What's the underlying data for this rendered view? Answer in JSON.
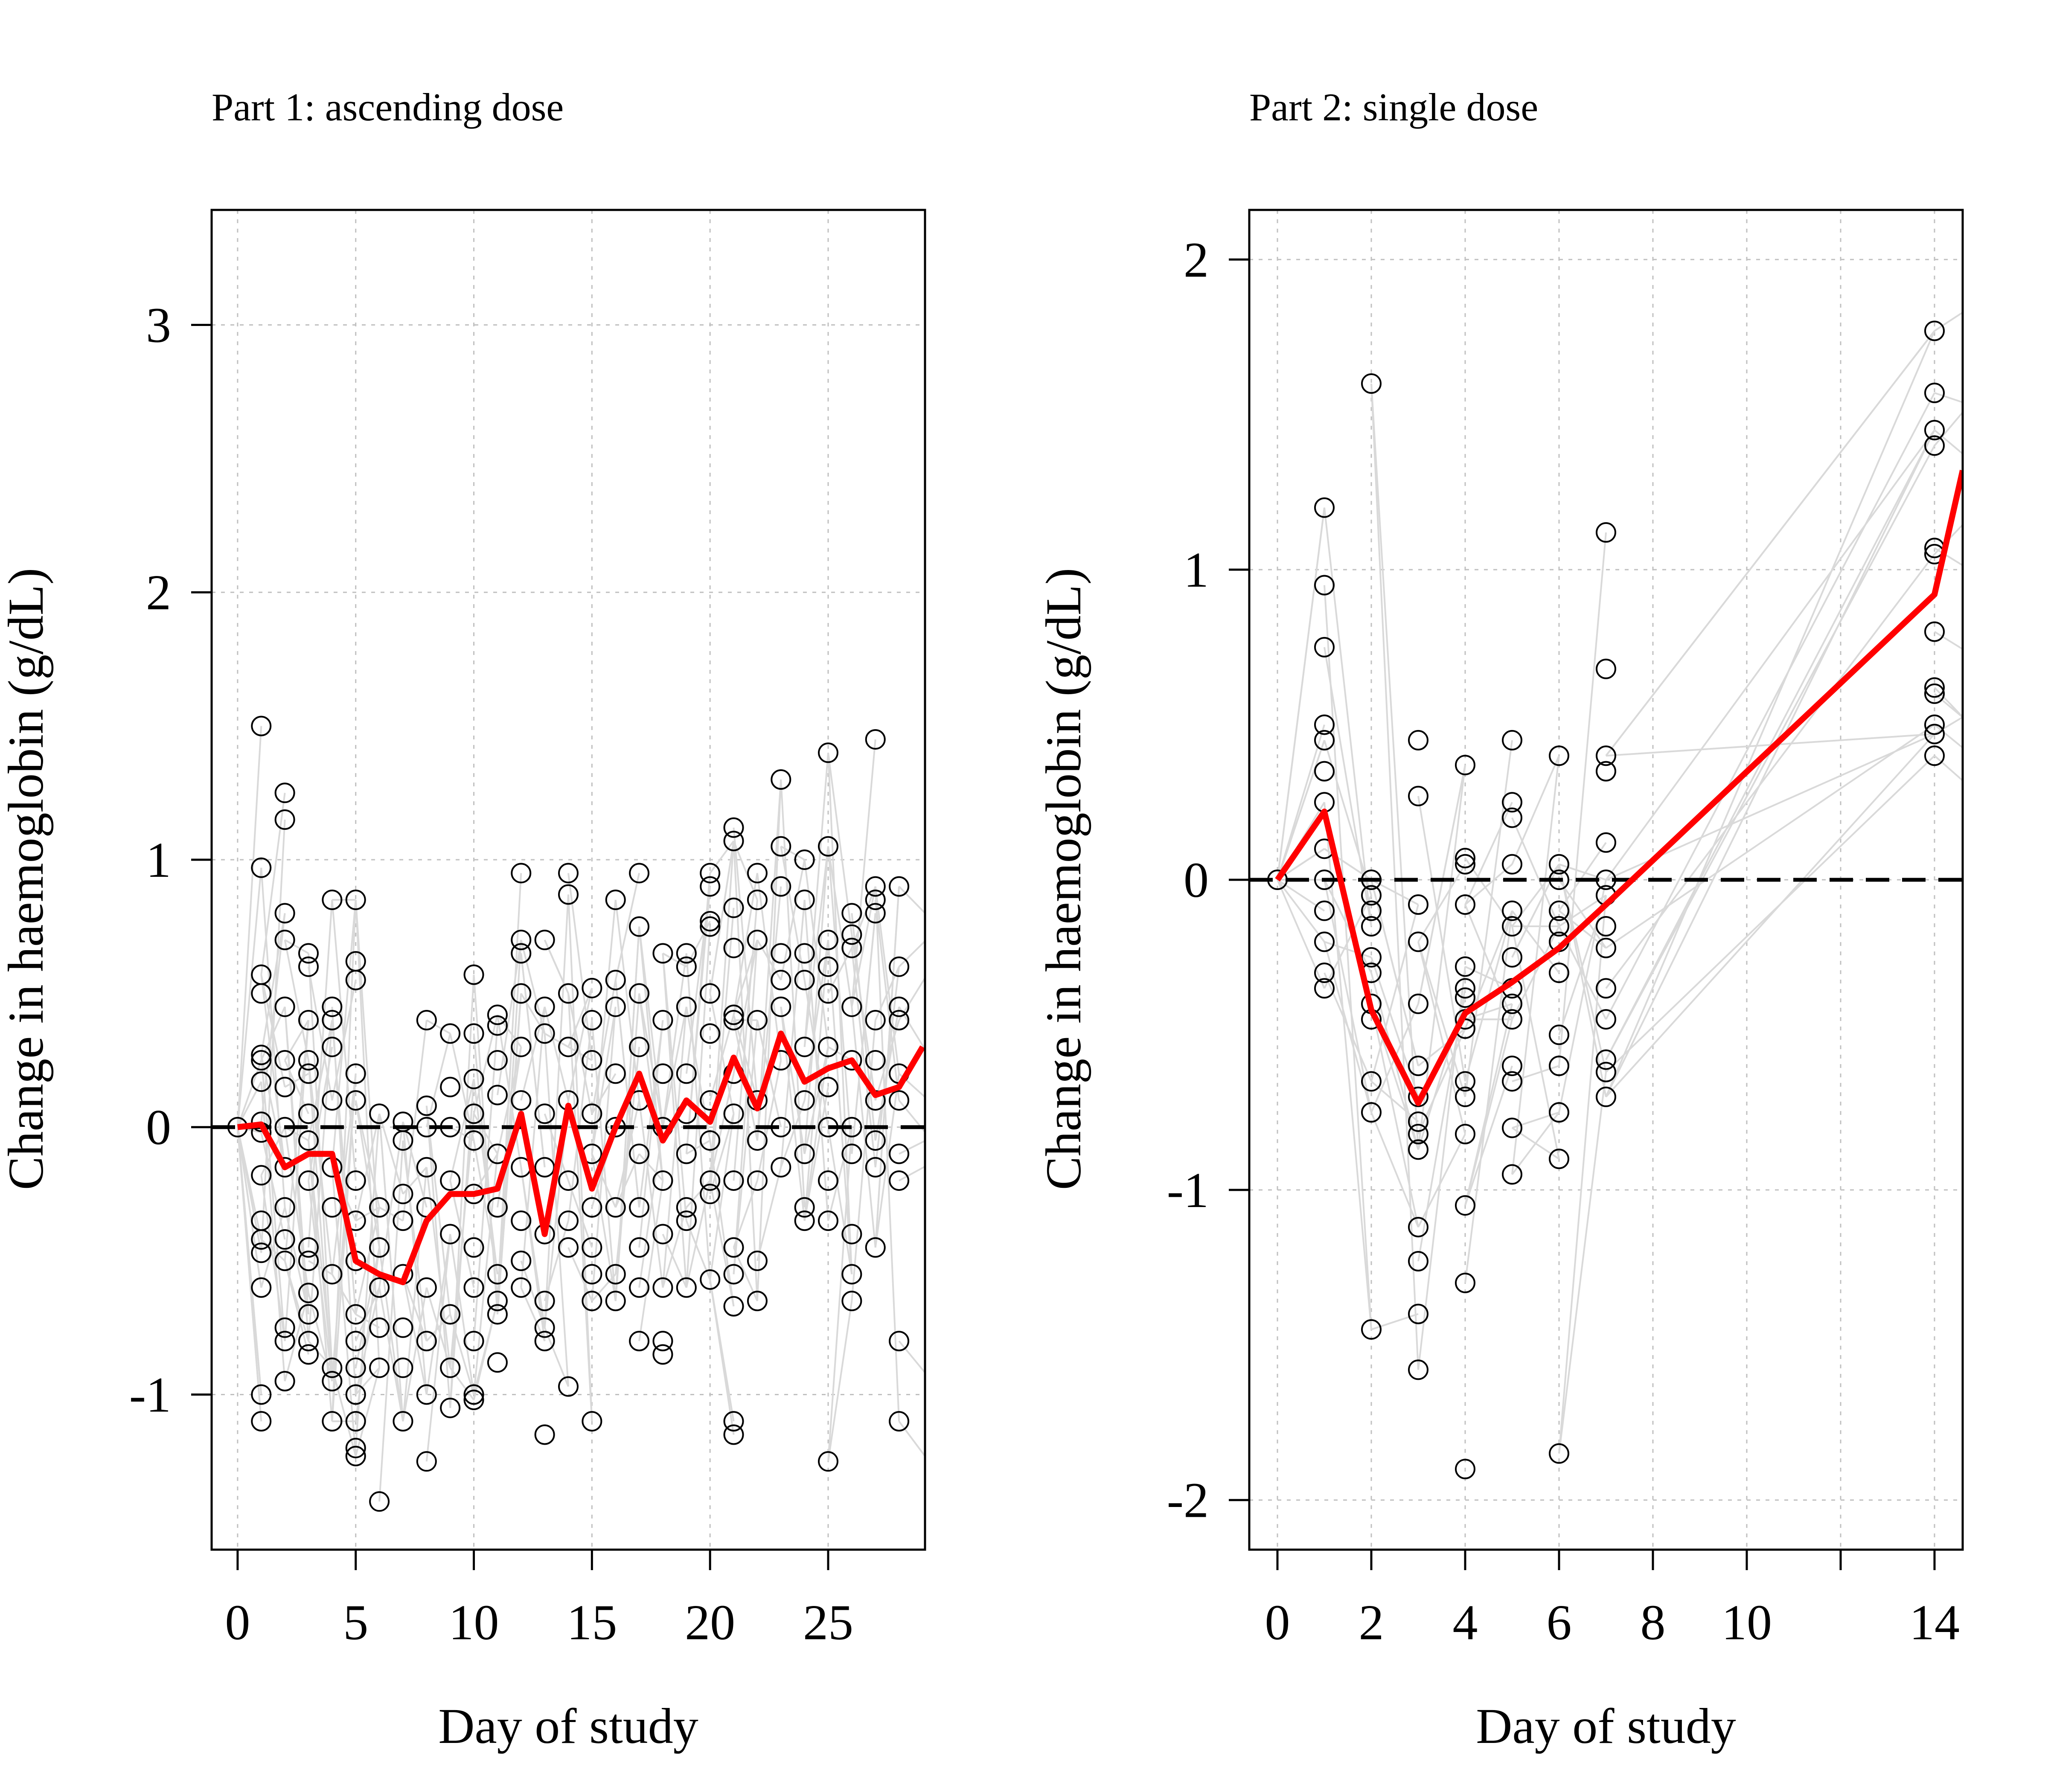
{
  "colors": {
    "mean_line": "#ff0000",
    "individual_lines": "#d9d9d9",
    "points": "#000000",
    "grid": "#c0c0c0",
    "reference_line": "#000000"
  },
  "chart_data": [
    {
      "type": "line",
      "title": "Part 1: ascending dose",
      "xlabel": "Day of study",
      "ylabel": "Change in haemoglobin (g/dL)",
      "xlim": [
        -1.1,
        29.1
      ],
      "ylim": [
        -1.58,
        3.43
      ],
      "xticks": [
        0,
        5,
        10,
        15,
        20,
        25
      ],
      "yticks": [
        -1,
        0,
        1,
        2,
        3
      ],
      "grid": true,
      "reference_line_y": 0,
      "mean_series": {
        "x": [
          0,
          1,
          2,
          3,
          4,
          5,
          6,
          7,
          8,
          9,
          10,
          11,
          12,
          13,
          14,
          15,
          16,
          17,
          18,
          19,
          20,
          21,
          22,
          23,
          24,
          25,
          26,
          27,
          28,
          29
        ],
        "y": [
          0,
          0.01,
          -0.15,
          -0.1,
          -0.1,
          -0.5,
          -0.55,
          -0.58,
          -0.35,
          -0.25,
          -0.25,
          -0.23,
          0.05,
          -0.4,
          0.08,
          -0.23,
          0.0,
          0.2,
          -0.05,
          0.1,
          0.02,
          0.26,
          0.07,
          0.35,
          0.17,
          0.22,
          0.25,
          0.12,
          0.15,
          0.3
        ]
      },
      "points_by_day": [
        {
          "day": 0,
          "y": [
            0
          ]
        },
        {
          "day": 1,
          "y": [
            1.5,
            0.97,
            0.57,
            0.5,
            0.27,
            0.25,
            0.17,
            0.02,
            -0.02,
            -0.18,
            -0.35,
            -0.42,
            -0.47,
            -0.6,
            -1.0,
            -1.1
          ]
        },
        {
          "day": 2,
          "y": [
            1.25,
            1.15,
            0.8,
            0.7,
            0.45,
            0.25,
            0.15,
            0.0,
            -0.15,
            -0.3,
            -0.42,
            -0.5,
            -0.75,
            -0.8,
            -0.95
          ]
        },
        {
          "day": 3,
          "y": [
            0.65,
            0.6,
            0.4,
            0.25,
            0.2,
            0.05,
            -0.05,
            -0.2,
            -0.45,
            -0.5,
            -0.62,
            -0.7,
            -0.8,
            -0.85
          ]
        },
        {
          "day": 4,
          "y": [
            0.85,
            0.45,
            0.4,
            0.3,
            0.1,
            -0.15,
            -0.3,
            -0.55,
            -0.9,
            -0.95,
            -1.1
          ]
        },
        {
          "day": 5,
          "y": [
            0.85,
            0.62,
            0.55,
            0.2,
            0.1,
            -0.2,
            -0.35,
            -0.5,
            -0.7,
            -0.8,
            -0.9,
            -1.0,
            -1.1,
            -1.2,
            -1.23
          ]
        },
        {
          "day": 6,
          "y": [
            0.05,
            -0.3,
            -0.45,
            -0.6,
            -0.75,
            -0.9,
            -1.4
          ]
        },
        {
          "day": 7,
          "y": [
            0.02,
            -0.05,
            -0.25,
            -0.35,
            -0.55,
            -0.75,
            -0.9,
            -1.1
          ]
        },
        {
          "day": 8,
          "y": [
            0.4,
            0.08,
            0.0,
            -0.15,
            -0.3,
            -0.6,
            -0.8,
            -1.0,
            -1.25
          ]
        },
        {
          "day": 9,
          "y": [
            0.35,
            0.15,
            0.0,
            -0.2,
            -0.4,
            -0.7,
            -0.9,
            -1.05
          ]
        },
        {
          "day": 10,
          "y": [
            0.57,
            0.35,
            0.18,
            0.05,
            -0.05,
            -0.25,
            -0.45,
            -0.6,
            -0.8,
            -1.0,
            -1.02
          ]
        },
        {
          "day": 11,
          "y": [
            0.42,
            0.38,
            0.25,
            0.12,
            -0.1,
            -0.3,
            -0.55,
            -0.65,
            -0.7,
            -0.88
          ]
        },
        {
          "day": 12,
          "y": [
            0.95,
            0.7,
            0.65,
            0.5,
            0.3,
            0.1,
            -0.15,
            -0.35,
            -0.5,
            -0.6
          ]
        },
        {
          "day": 13,
          "y": [
            0.7,
            0.45,
            0.35,
            0.05,
            -0.15,
            -0.4,
            -0.65,
            -0.75,
            -0.8,
            -1.15
          ]
        },
        {
          "day": 14,
          "y": [
            0.95,
            0.87,
            0.5,
            0.3,
            0.1,
            -0.2,
            -0.35,
            -0.45,
            -0.97
          ]
        },
        {
          "day": 15,
          "y": [
            0.52,
            0.4,
            0.25,
            0.05,
            -0.1,
            -0.3,
            -0.45,
            -0.55,
            -0.65,
            -1.1
          ]
        },
        {
          "day": 16,
          "y": [
            0.85,
            0.55,
            0.45,
            0.2,
            0.0,
            -0.3,
            -0.55,
            -0.65
          ]
        },
        {
          "day": 17,
          "y": [
            0.95,
            0.75,
            0.5,
            0.3,
            0.1,
            -0.1,
            -0.3,
            -0.45,
            -0.6,
            -0.8
          ]
        },
        {
          "day": 18,
          "y": [
            0.65,
            0.4,
            0.2,
            0.0,
            -0.2,
            -0.4,
            -0.6,
            -0.8,
            -0.85
          ]
        },
        {
          "day": 19,
          "y": [
            0.65,
            0.6,
            0.45,
            0.2,
            0.05,
            -0.1,
            -0.3,
            -0.35,
            -0.6
          ]
        },
        {
          "day": 20,
          "y": [
            0.95,
            0.9,
            0.77,
            0.75,
            0.5,
            0.35,
            0.1,
            -0.05,
            -0.2,
            -0.25,
            -0.57
          ]
        },
        {
          "day": 21,
          "y": [
            1.12,
            1.07,
            0.82,
            0.67,
            0.42,
            0.4,
            0.2,
            0.05,
            -0.2,
            -0.45,
            -0.55,
            -0.67,
            -1.1,
            -1.15
          ]
        },
        {
          "day": 22,
          "y": [
            0.95,
            0.85,
            0.7,
            0.4,
            0.1,
            -0.05,
            -0.2,
            -0.5,
            -0.65
          ]
        },
        {
          "day": 23,
          "y": [
            1.3,
            1.05,
            0.9,
            0.65,
            0.55,
            0.45,
            0.25,
            0.0,
            -0.15
          ]
        },
        {
          "day": 24,
          "y": [
            1.0,
            0.85,
            0.65,
            0.55,
            0.3,
            0.1,
            -0.1,
            -0.3,
            -0.35
          ]
        },
        {
          "day": 25,
          "y": [
            1.4,
            1.05,
            0.7,
            0.6,
            0.5,
            0.3,
            0.15,
            0.0,
            -0.2,
            -0.35,
            -1.25
          ]
        },
        {
          "day": 26,
          "y": [
            0.8,
            0.72,
            0.67,
            0.45,
            0.25,
            0.0,
            -0.1,
            -0.4,
            -0.55,
            -0.65
          ]
        },
        {
          "day": 27,
          "y": [
            1.45,
            0.9,
            0.85,
            0.8,
            0.4,
            0.25,
            0.1,
            -0.05,
            -0.15,
            -0.45
          ]
        },
        {
          "day": 28,
          "y": [
            0.9,
            0.6,
            0.45,
            0.4,
            0.2,
            0.1,
            -0.1,
            -0.2,
            -0.8,
            -1.1
          ]
        }
      ]
    },
    {
      "type": "line",
      "title": "Part 2: single dose",
      "xlabel": "Day of study",
      "ylabel": "Change in haemoglobin (g/dL)",
      "xlim": [
        -0.6,
        14.6
      ],
      "ylim": [
        -2.16,
        2.16
      ],
      "xticks": [
        0,
        2,
        4,
        6,
        8,
        10,
        12,
        14
      ],
      "xtick_labels": [
        "0",
        "2",
        "4",
        "6",
        "8",
        "10",
        "",
        "14"
      ],
      "yticks": [
        -2,
        -1,
        0,
        1,
        2
      ],
      "grid": true,
      "reference_line_y": 0,
      "mean_series": {
        "x": [
          0,
          1,
          2,
          3,
          4,
          5,
          6,
          7,
          14,
          14.6
        ],
        "y": [
          0,
          0.22,
          -0.42,
          -0.72,
          -0.43,
          -0.33,
          -0.22,
          -0.08,
          0.92,
          1.32
        ]
      },
      "points_by_day": [
        {
          "day": 0,
          "y": [
            0
          ]
        },
        {
          "day": 1,
          "y": [
            1.2,
            0.95,
            0.75,
            0.5,
            0.45,
            0.35,
            0.25,
            0.1,
            0.0,
            -0.1,
            -0.2,
            -0.3,
            -0.35
          ]
        },
        {
          "day": 2,
          "y": [
            1.6,
            0.0,
            -0.05,
            -0.1,
            -0.15,
            -0.25,
            -0.3,
            -0.4,
            -0.45,
            -0.65,
            -0.75,
            -1.45
          ]
        },
        {
          "day": 3,
          "y": [
            0.45,
            0.27,
            -0.08,
            -0.2,
            -0.4,
            -0.6,
            -0.7,
            -0.78,
            -0.82,
            -0.87,
            -1.12,
            -1.23,
            -1.4,
            -1.58
          ]
        },
        {
          "day": 4,
          "y": [
            0.37,
            0.07,
            0.05,
            -0.08,
            -0.28,
            -0.35,
            -0.38,
            -0.45,
            -0.48,
            -0.65,
            -0.7,
            -0.82,
            -1.05,
            -1.3,
            -1.9
          ]
        },
        {
          "day": 5,
          "y": [
            0.45,
            0.25,
            0.2,
            0.05,
            -0.1,
            -0.15,
            -0.25,
            -0.35,
            -0.4,
            -0.45,
            -0.6,
            -0.65,
            -0.8,
            -0.95
          ]
        },
        {
          "day": 6,
          "y": [
            0.4,
            0.05,
            0.0,
            -0.1,
            -0.15,
            -0.2,
            -0.3,
            -0.5,
            -0.6,
            -0.75,
            -0.9,
            -1.85
          ]
        },
        {
          "day": 7,
          "y": [
            1.12,
            0.68,
            0.4,
            0.35,
            0.12,
            0.0,
            -0.05,
            -0.15,
            -0.22,
            -0.35,
            -0.45,
            -0.58,
            -0.62,
            -0.7
          ]
        },
        {
          "day": 14,
          "y": [
            1.77,
            1.57,
            1.45,
            1.4,
            1.07,
            1.05,
            0.8,
            0.62,
            0.6,
            0.5,
            0.47,
            0.4
          ]
        }
      ]
    }
  ]
}
